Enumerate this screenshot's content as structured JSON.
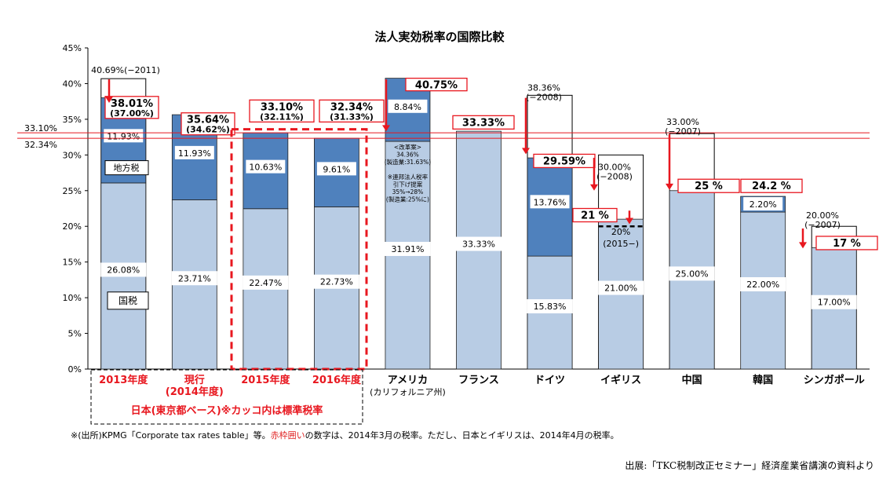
{
  "chart_data": {
    "type": "bar",
    "title": "法人実効税率の国際比較",
    "ylim": [
      0,
      45
    ],
    "yticks": [
      "0%",
      "5%",
      "10%",
      "15%",
      "20%",
      "25%",
      "30%",
      "35%",
      "40%",
      "45%"
    ],
    "categories": [
      {
        "label": "2013年度",
        "red": true
      },
      {
        "label": "現行\n(2014年度)",
        "red": true
      },
      {
        "label": "2015年度",
        "red": true
      },
      {
        "label": "2016年度",
        "red": true
      },
      {
        "label": "アメリカ\n(カリフォルニア州)",
        "red": false
      },
      {
        "label": "フランス",
        "red": false
      },
      {
        "label": "ドイツ",
        "red": false
      },
      {
        "label": "イギリス",
        "red": false
      },
      {
        "label": "中国",
        "red": false
      },
      {
        "label": "韓国",
        "red": false
      },
      {
        "label": "シンガポール",
        "red": false
      }
    ],
    "series": [
      {
        "name": "国税",
        "color": "#b8cce4",
        "values": [
          26.08,
          23.71,
          22.47,
          22.73,
          31.91,
          33.33,
          15.83,
          21.0,
          25.0,
          22.0,
          17.0
        ],
        "labels": [
          "26.08%",
          "23.71%",
          "22.47%",
          "22.73%",
          "31.91%",
          "33.33%",
          "15.83%",
          "21.00%",
          "25.00%",
          "22.00%",
          "17.00%"
        ]
      },
      {
        "name": "地方税",
        "color": "#4f81bd",
        "values": [
          11.93,
          11.93,
          10.63,
          9.61,
          8.84,
          0,
          13.76,
          0,
          0,
          2.2,
          0
        ],
        "labels": [
          "11.93%",
          "11.93%",
          "10.63%",
          "9.61%",
          "8.84%",
          "",
          "13.76%",
          "",
          "",
          "2.20%",
          ""
        ]
      }
    ],
    "boxed_totals": [
      "38.01%\n(37.00%)",
      "35.64%\n(34.62%)",
      "33.10%\n(32.11%)",
      "32.34%\n(31.33%)",
      "40.75%",
      "33.33%",
      "29.59%",
      "21 %",
      "25 %",
      "24.2 %",
      "17 %"
    ],
    "previous_rates": [
      {
        "index": 0,
        "value": 40.69,
        "label": "40.69%(−2011)"
      },
      {
        "index": 6,
        "value": 38.36,
        "label": "38.36%\n(−2008)"
      },
      {
        "index": 7,
        "value": 30.0,
        "label": "30.00%\n(−2008)"
      },
      {
        "index": 8,
        "value": 33.0,
        "label": "33.00%\n(−2007)"
      },
      {
        "index": 10,
        "value": 20.0,
        "label": "20.00%\n(−2007)"
      }
    ],
    "reference_lines": [
      {
        "value": 33.1,
        "label": "33.10%"
      },
      {
        "value": 32.34,
        "label": "32.34%"
      }
    ],
    "legend_in_bar": {
      "national": "国税",
      "local": "地方税"
    },
    "uk_planned": {
      "value": 20,
      "label": "20%\n(2015−)"
    },
    "us_note": "<改革案>\n34.36%\n(製造業:31.63%)\n\n※連邦法人税率\n引下げ提案\n35%→28%\n(製造業:25%に)",
    "group_label": "日本(東京都ベース)※カッコ内は標準税率",
    "grid": false
  },
  "footnote": {
    "part1": "※(出所)KPMG「Corporate tax rates table」等。",
    "part2": "赤枠囲い",
    "part3": "の数字は、2014年3月の税率。ただし、日本とイギリスは、2014年4月の税率。"
  },
  "source": "出展:「TKC税制改正セミナー」経済産業省講演の資料より"
}
